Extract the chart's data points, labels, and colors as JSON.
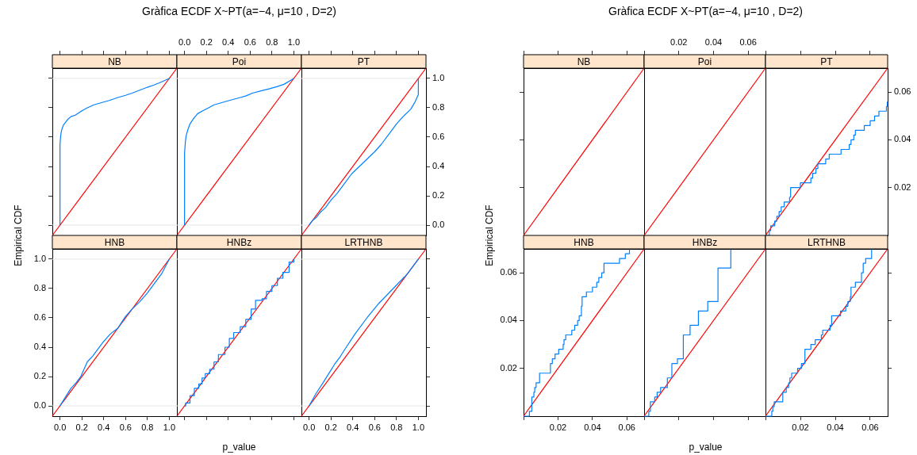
{
  "chart_data": [
    {
      "type": "line",
      "title": "NB",
      "xlim": [
        -0.07,
        1.07
      ],
      "ylim": [
        -0.07,
        1.07
      ],
      "xticks": [
        {
          "value": 0,
          "label": null
        },
        {
          "value": 0.2,
          "label": null
        },
        {
          "value": 0.4,
          "label": null
        },
        {
          "value": 0.6,
          "label": null
        },
        {
          "value": 0.8,
          "label": null
        },
        {
          "value": 1,
          "label": null
        }
      ],
      "yticks": [
        {
          "value": 0,
          "label": null
        },
        {
          "value": 0.2,
          "label": null
        },
        {
          "value": 0.4,
          "label": null
        },
        {
          "value": 0.6,
          "label": null
        },
        {
          "value": 0.8,
          "label": null
        },
        {
          "value": 1,
          "label": null
        }
      ],
      "tick_labels": false,
      "ylabel": "Empirical CDF",
      "ref_lines": [
        {
          "axis": "y",
          "value": 0,
          "color": "#e6e6e6"
        },
        {
          "axis": "y",
          "value": 1,
          "color": "#e6e6e6"
        }
      ],
      "series": [
        {
          "color": "#0080ff",
          "x": [
            0,
            0,
            0.005,
            0.01,
            0.02,
            0.03,
            0.05,
            0.07,
            0.1,
            0.14,
            0.2,
            0.25,
            0.31,
            0.38,
            0.45,
            0.53,
            0.6,
            0.66,
            0.73,
            0.8,
            0.86,
            0.91,
            1.0
          ],
          "values": [
            0,
            0.55,
            0.6,
            0.63,
            0.66,
            0.68,
            0.7,
            0.72,
            0.74,
            0.75,
            0.78,
            0.8,
            0.82,
            0.835,
            0.85,
            0.87,
            0.885,
            0.9,
            0.92,
            0.94,
            0.955,
            0.97,
            1.0
          ]
        },
        {
          "type": "line",
          "color": "#ff0000",
          "x": [
            -0.07,
            1.07
          ],
          "values": [
            -0.07,
            1.07
          ]
        }
      ]
    },
    {
      "type": "line",
      "title": "Poi",
      "xlim": [
        -0.07,
        1.07
      ],
      "ylim": [
        -0.07,
        1.07
      ],
      "xticks": [
        {
          "value": 0,
          "label": "0.0"
        },
        0.2,
        0.4,
        0.6,
        0.8,
        {
          "value": 1,
          "label": "1.0"
        }
      ],
      "tick_labels": "x",
      "annotations": [
        "Gràfica ECDF X~PT(a=−4, μ=10 , D=2)"
      ],
      "ref_lines": [
        {
          "axis": "y",
          "value": 0,
          "color": "#e6e6e6"
        },
        {
          "axis": "y",
          "value": 1,
          "color": "#e6e6e6"
        }
      ],
      "series": [
        {
          "color": "#0080ff",
          "x": [
            0,
            0,
            0.008,
            0.015,
            0.03,
            0.05,
            0.086,
            0.12,
            0.167,
            0.22,
            0.27,
            0.34,
            0.41,
            0.51,
            0.56,
            0.62,
            0.7,
            0.78,
            0.85,
            0.91,
            1.0
          ],
          "values": [
            0,
            0.49,
            0.57,
            0.61,
            0.65,
            0.69,
            0.73,
            0.76,
            0.78,
            0.8,
            0.82,
            0.835,
            0.85,
            0.87,
            0.88,
            0.9,
            0.915,
            0.93,
            0.945,
            0.96,
            1.0
          ]
        },
        {
          "type": "line",
          "color": "#ff0000",
          "x": [
            -0.07,
            1.07
          ],
          "values": [
            -0.07,
            1.07
          ]
        }
      ]
    },
    {
      "type": "line",
      "title": "PT",
      "xlim": [
        -0.07,
        1.07
      ],
      "ylim": [
        -0.07,
        1.07
      ],
      "xticks": [
        {
          "value": 0,
          "label": null
        },
        {
          "value": 0.2,
          "label": null
        },
        {
          "value": 0.4,
          "label": null
        },
        {
          "value": 0.6,
          "label": null
        },
        {
          "value": 0.8,
          "label": null
        },
        {
          "value": 1,
          "label": null
        }
      ],
      "yticks": [
        {
          "value": 0,
          "label": "0.0"
        },
        0.2,
        0.4,
        0.6,
        0.8,
        {
          "value": 1,
          "label": "1.0"
        }
      ],
      "tick_labels": "y",
      "ref_lines": [
        {
          "axis": "y",
          "value": 0,
          "color": "#e6e6e6"
        },
        {
          "axis": "y",
          "value": 1,
          "color": "#e6e6e6"
        }
      ],
      "series": [
        {
          "color": "#0080ff",
          "x": [
            0,
            0.005,
            0.03,
            0.07,
            0.1,
            0.15,
            0.2,
            0.26,
            0.33,
            0.39,
            0.46,
            0.53,
            0.6,
            0.66,
            0.73,
            0.8,
            0.86,
            0.93,
            0.97,
            1.0,
            1.0
          ],
          "values": [
            0,
            0.006,
            0.03,
            0.056,
            0.085,
            0.12,
            0.17,
            0.22,
            0.29,
            0.35,
            0.4,
            0.45,
            0.5,
            0.55,
            0.62,
            0.69,
            0.74,
            0.79,
            0.84,
            0.89,
            1.0
          ]
        },
        {
          "type": "line",
          "color": "#ff0000",
          "x": [
            -0.07,
            1.07
          ],
          "values": [
            -0.07,
            1.07
          ]
        }
      ]
    },
    {
      "type": "line",
      "title": "HNB",
      "xlim": [
        -0.07,
        1.07
      ],
      "ylim": [
        -0.07,
        1.07
      ],
      "xticks": [
        {
          "value": 0,
          "label": "0.0"
        },
        0.2,
        0.4,
        0.6,
        0.8,
        {
          "value": 1,
          "label": "1.0"
        }
      ],
      "yticks": [
        {
          "value": 0,
          "label": "0.0"
        },
        0.2,
        0.4,
        0.6,
        0.8,
        {
          "value": 1,
          "label": "1.0"
        }
      ],
      "ref_lines": [
        {
          "axis": "y",
          "value": 0,
          "color": "#e6e6e6"
        },
        {
          "axis": "y",
          "value": 1,
          "color": "#e6e6e6"
        }
      ],
      "series": [
        {
          "color": "#0080ff",
          "x": [
            0,
            0.005,
            0.05,
            0.1,
            0.15,
            0.19,
            0.22,
            0.25,
            0.3,
            0.39,
            0.46,
            0.53,
            0.6,
            0.66,
            0.73,
            0.8,
            0.86,
            0.93,
            1.0
          ],
          "values": [
            0,
            0.006,
            0.06,
            0.12,
            0.16,
            0.2,
            0.25,
            0.3,
            0.34,
            0.43,
            0.49,
            0.53,
            0.61,
            0.66,
            0.71,
            0.77,
            0.83,
            0.9,
            1.0
          ]
        },
        {
          "type": "line",
          "color": "#ff0000",
          "x": [
            -0.07,
            1.07
          ],
          "values": [
            -0.07,
            1.07
          ]
        }
      ]
    },
    {
      "type": "step",
      "title": "HNBz",
      "xlim": [
        -0.07,
        1.07
      ],
      "ylim": [
        -0.07,
        1.07
      ],
      "xticks": [
        {
          "value": 0,
          "label": null
        },
        {
          "value": 0.2,
          "label": null
        },
        {
          "value": 0.4,
          "label": null
        },
        {
          "value": 0.6,
          "label": null
        },
        {
          "value": 0.8,
          "label": null
        },
        {
          "value": 1,
          "label": null
        }
      ],
      "tick_labels": false,
      "xlabel": "p_value",
      "ref_lines": [
        {
          "axis": "y",
          "value": 0,
          "color": "#e6e6e6"
        },
        {
          "axis": "y",
          "value": 1,
          "color": "#e6e6e6"
        }
      ],
      "series": [
        {
          "color": "#0080ff",
          "x": [
            0,
            0.01,
            0.05,
            0.09,
            0.13,
            0.16,
            0.19,
            0.23,
            0.27,
            0.31,
            0.37,
            0.41,
            0.45,
            0.51,
            0.56,
            0.61,
            0.65,
            0.71,
            0.75,
            0.8,
            0.85,
            0.9,
            0.957,
            1.0
          ],
          "values": [
            0,
            0.02,
            0.07,
            0.12,
            0.15,
            0.19,
            0.22,
            0.25,
            0.3,
            0.35,
            0.4,
            0.46,
            0.5,
            0.54,
            0.59,
            0.66,
            0.72,
            0.73,
            0.78,
            0.82,
            0.87,
            0.91,
            0.98,
            1.0
          ]
        },
        {
          "type": "line",
          "color": "#ff0000",
          "x": [
            -0.07,
            1.07
          ],
          "values": [
            -0.07,
            1.07
          ]
        }
      ]
    },
    {
      "type": "line",
      "title": "LRTHNB",
      "xlim": [
        -0.07,
        1.07
      ],
      "ylim": [
        -0.07,
        1.07
      ],
      "xticks": [
        {
          "value": 0,
          "label": "0.0"
        },
        0.2,
        0.4,
        0.6,
        0.8,
        {
          "value": 1,
          "label": "1.0"
        }
      ],
      "yticks": [
        {
          "value": 0,
          "label": null
        },
        {
          "value": 0.2,
          "label": null
        },
        {
          "value": 0.4,
          "label": null
        },
        {
          "value": 0.6,
          "label": null
        },
        {
          "value": 0.8,
          "label": null
        },
        {
          "value": 1,
          "label": null
        }
      ],
      "tick_labels": "x",
      "ref_lines": [
        {
          "axis": "y",
          "value": 0,
          "color": "#e6e6e6"
        },
        {
          "axis": "y",
          "value": 1,
          "color": "#e6e6e6"
        }
      ],
      "series": [
        {
          "color": "#0080ff",
          "x": [
            0,
            0.005,
            0.06,
            0.13,
            0.18,
            0.23,
            0.28,
            0.34,
            0.42,
            0.53,
            0.64,
            0.77,
            0.9,
            1.0
          ],
          "values": [
            0,
            0.006,
            0.08,
            0.16,
            0.22,
            0.28,
            0.33,
            0.4,
            0.49,
            0.6,
            0.7,
            0.8,
            0.9,
            1.0
          ]
        },
        {
          "type": "line",
          "color": "#ff0000",
          "x": [
            -0.07,
            1.07
          ],
          "values": [
            -0.07,
            1.07
          ]
        }
      ]
    },
    {
      "type": "line",
      "title": "NB",
      "xlim": [
        0,
        0.07
      ],
      "ylim": [
        0,
        0.07
      ],
      "xticks": [
        {
          "value": 0,
          "label": null
        },
        {
          "value": 0.02,
          "label": null
        },
        {
          "value": 0.04,
          "label": null
        },
        {
          "value": 0.06,
          "label": null
        }
      ],
      "yticks": [
        {
          "value": 0.02,
          "label": null
        },
        {
          "value": 0.04,
          "label": null
        },
        {
          "value": 0.06,
          "label": null
        }
      ],
      "tick_labels": false,
      "ylabel": "Empirical CDF",
      "series": [
        {
          "color": "#ff0000",
          "x": [
            0,
            0.07
          ],
          "values": [
            0,
            0.07
          ]
        }
      ]
    },
    {
      "type": "line",
      "title": "Poi",
      "xlim": [
        0,
        0.07
      ],
      "ylim": [
        0,
        0.07
      ],
      "xticks": [
        {
          "value": 0,
          "label": null
        },
        0.02,
        0.04,
        0.06
      ],
      "tick_labels": "x",
      "annotations": [
        "Gràfica ECDF X~PT(a=−4, μ=10 , D=2)"
      ],
      "series": [
        {
          "color": "#ff0000",
          "x": [
            0,
            0.07
          ],
          "values": [
            0,
            0.07
          ]
        }
      ]
    },
    {
      "type": "step",
      "title": "PT",
      "xlim": [
        0,
        0.07
      ],
      "ylim": [
        0,
        0.07
      ],
      "xticks": [
        {
          "value": 0,
          "label": null
        },
        {
          "value": 0.02,
          "label": null
        },
        {
          "value": 0.04,
          "label": null
        },
        {
          "value": 0.06,
          "label": null
        }
      ],
      "yticks": [
        0.02,
        0.04,
        0.06
      ],
      "tick_labels": "y",
      "series": [
        {
          "color": "#0080ff",
          "x": [
            0,
            0.0022,
            0.003,
            0.0053,
            0.0065,
            0.0078,
            0.009,
            0.0107,
            0.0138,
            0.0144,
            0.02,
            0.026,
            0.027,
            0.0289,
            0.03,
            0.0345,
            0.0365,
            0.0433,
            0.048,
            0.049,
            0.0506,
            0.0515,
            0.0566,
            0.06,
            0.0625,
            0.065,
            0.0693,
            0.0698
          ],
          "values": [
            0,
            0.002,
            0.004,
            0.006,
            0.008,
            0.01,
            0.012,
            0.014,
            0.016,
            0.02,
            0.022,
            0.024,
            0.026,
            0.028,
            0.03,
            0.032,
            0.034,
            0.036,
            0.038,
            0.04,
            0.042,
            0.044,
            0.046,
            0.048,
            0.05,
            0.052,
            0.054,
            0.056
          ]
        },
        {
          "type": "line",
          "color": "#ff0000",
          "x": [
            0,
            0.07
          ],
          "values": [
            0,
            0.07
          ]
        }
      ]
    },
    {
      "type": "step",
      "title": "HNB",
      "xlim": [
        0,
        0.07
      ],
      "ylim": [
        0,
        0.07
      ],
      "xticks": [
        {
          "value": 0,
          "label": null
        },
        0.02,
        0.04,
        0.06
      ],
      "yticks": [
        0.02,
        0.04,
        0.06
      ],
      "series": [
        {
          "color": "#0080ff",
          "x": [
            0,
            0.0034,
            0.0048,
            0.006,
            0.0065,
            0.0073,
            0.0093,
            0.0156,
            0.0167,
            0.0183,
            0.0204,
            0.023,
            0.0235,
            0.0245,
            0.028,
            0.0297,
            0.0314,
            0.0323,
            0.0336,
            0.034,
            0.0365,
            0.04,
            0.0425,
            0.0437,
            0.0454,
            0.0467,
            0.0557,
            0.0591,
            0.0615
          ],
          "values": [
            0,
            0.002,
            0.008,
            0.01,
            0.012,
            0.014,
            0.018,
            0.022,
            0.024,
            0.026,
            0.028,
            0.03,
            0.032,
            0.034,
            0.036,
            0.038,
            0.04,
            0.042,
            0.046,
            0.05,
            0.052,
            0.054,
            0.056,
            0.058,
            0.06,
            0.064,
            0.066,
            0.068,
            0.07
          ]
        },
        {
          "type": "line",
          "color": "#ff0000",
          "x": [
            0,
            0.07
          ],
          "values": [
            0,
            0.07
          ]
        }
      ]
    },
    {
      "type": "step",
      "title": "HNBz",
      "xlim": [
        0,
        0.07
      ],
      "ylim": [
        0,
        0.07
      ],
      "xticks": [
        {
          "value": 0,
          "label": null
        },
        {
          "value": 0.02,
          "label": null
        },
        {
          "value": 0.04,
          "label": null
        },
        {
          "value": 0.06,
          "label": null
        }
      ],
      "tick_labels": false,
      "xlabel": "p_value",
      "series": [
        {
          "color": "#0080ff",
          "x": [
            0,
            0.0027,
            0.0036,
            0.0061,
            0.0075,
            0.0095,
            0.0134,
            0.016,
            0.0192,
            0.0226,
            0.0265,
            0.0313,
            0.0367,
            0.0426,
            0.05
          ],
          "values": [
            0,
            0.002,
            0.006,
            0.008,
            0.01,
            0.012,
            0.016,
            0.022,
            0.024,
            0.034,
            0.038,
            0.044,
            0.048,
            0.062,
            0.07
          ]
        },
        {
          "type": "line",
          "color": "#ff0000",
          "x": [
            0,
            0.07
          ],
          "values": [
            0,
            0.07
          ]
        }
      ]
    },
    {
      "type": "step",
      "title": "LRTHNB",
      "xlim": [
        0,
        0.07
      ],
      "ylim": [
        0,
        0.07
      ],
      "xticks": [
        {
          "value": 0,
          "label": null
        },
        0.02,
        0.04,
        0.06
      ],
      "yticks": [
        {
          "value": 0.02,
          "label": null
        },
        {
          "value": 0.04,
          "label": null
        },
        {
          "value": 0.06,
          "label": null
        }
      ],
      "tick_labels": "x",
      "series": [
        {
          "color": "#0080ff",
          "x": [
            0,
            0.0036,
            0.0042,
            0.005,
            0.0099,
            0.0119,
            0.0133,
            0.014,
            0.015,
            0.0184,
            0.0206,
            0.0226,
            0.026,
            0.0285,
            0.032,
            0.0328,
            0.037,
            0.0379,
            0.043,
            0.046,
            0.0472,
            0.0486,
            0.049,
            0.0515,
            0.055,
            0.056,
            0.0574,
            0.0608
          ],
          "values": [
            0,
            0.002,
            0.004,
            0.006,
            0.01,
            0.012,
            0.014,
            0.016,
            0.018,
            0.02,
            0.022,
            0.028,
            0.03,
            0.032,
            0.034,
            0.036,
            0.038,
            0.042,
            0.044,
            0.046,
            0.048,
            0.05,
            0.054,
            0.056,
            0.06,
            0.064,
            0.066,
            0.07
          ]
        },
        {
          "type": "line",
          "color": "#ff0000",
          "x": [
            0,
            0.07
          ],
          "values": [
            0,
            0.07
          ]
        }
      ]
    }
  ]
}
